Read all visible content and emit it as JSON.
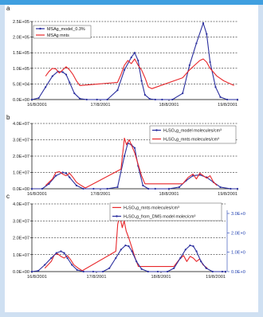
{
  "colors": {
    "model": "#2b2f9e",
    "measured": "#e8272b",
    "grid": "#000000",
    "frame_border": "#cfe0f2",
    "top_bar": "#3f9fe0",
    "right_axis": "#1f3fb0"
  },
  "chart_data": [
    {
      "panel_label": "a",
      "type": "line",
      "x_tick_labels": [
        "16/8/2001",
        "17/8/2001",
        "18/8/2001",
        "19/8/2001"
      ],
      "y_tick_labels": [
        "0.0E+00",
        "5.0E+04",
        "1.0E+05",
        "1.5E+05",
        "2.0E+05",
        "2.5E+05"
      ],
      "ylim": [
        0,
        250000
      ],
      "xlim": [
        0,
        3
      ],
      "grid": true,
      "legend_position": "top-left",
      "series": [
        {
          "name": "MSAg_model_0.3%",
          "color": "#2b2f9e",
          "x": [
            0.0,
            0.1,
            0.2,
            0.3,
            0.38,
            0.45,
            0.5,
            0.55,
            0.62,
            0.7,
            0.8,
            0.95,
            1.1,
            1.25,
            1.35,
            1.45,
            1.5,
            1.55,
            1.6,
            1.65,
            1.72,
            1.8,
            1.9,
            2.05,
            2.2,
            2.3,
            2.4,
            2.5,
            2.55,
            2.6,
            2.68,
            2.75,
            2.85,
            3.0
          ],
          "y": [
            0,
            5000,
            40000,
            75000,
            90000,
            88000,
            80000,
            55000,
            20000,
            3000,
            0,
            0,
            0,
            30000,
            95000,
            135000,
            150000,
            125000,
            60000,
            15000,
            2000,
            0,
            0,
            0,
            20000,
            110000,
            180000,
            245000,
            210000,
            120000,
            40000,
            8000,
            0,
            0
          ]
        },
        {
          "name": "MSAg mnts",
          "color": "#e8272b",
          "x": [
            0.2,
            0.25,
            0.3,
            0.35,
            0.4,
            0.45,
            0.5,
            0.55,
            0.6,
            0.65,
            0.7,
            1.25,
            1.3,
            1.35,
            1.4,
            1.45,
            1.5,
            1.55,
            1.6,
            1.65,
            1.7,
            1.75,
            2.2,
            2.3,
            2.4,
            2.45,
            2.5,
            2.55,
            2.6,
            2.7,
            2.8,
            2.9,
            2.95
          ],
          "y": [
            75000,
            90000,
            100000,
            98000,
            85000,
            95000,
            105000,
            95000,
            80000,
            60000,
            45000,
            55000,
            80000,
            110000,
            125000,
            115000,
            130000,
            110000,
            95000,
            70000,
            40000,
            35000,
            70000,
            95000,
            115000,
            125000,
            130000,
            120000,
            100000,
            75000,
            60000,
            50000,
            45000
          ]
        }
      ]
    },
    {
      "panel_label": "b",
      "type": "line",
      "x_tick_labels": [
        "16/8/2001",
        "17/8/2001",
        "18/8/2001",
        "19/8/2001"
      ],
      "y_tick_labels": [
        "0.0E+00",
        "1.0E+07",
        "2.0E+07",
        "3.0E+07",
        "4.0E+07"
      ],
      "ylim": [
        0,
        40000000
      ],
      "xlim": [
        0,
        3
      ],
      "grid": true,
      "legend_position": "top-right",
      "series": [
        {
          "name": "H₂SO₄g_model molecules/cm³",
          "color": "#2b2f9e",
          "x": [
            0.0,
            0.15,
            0.25,
            0.35,
            0.45,
            0.5,
            0.55,
            0.65,
            0.75,
            0.9,
            1.1,
            1.25,
            1.35,
            1.4,
            1.45,
            1.5,
            1.55,
            1.62,
            1.7,
            1.8,
            2.0,
            2.15,
            2.25,
            2.35,
            2.45,
            2.55,
            2.65,
            2.75,
            2.9,
            3.0
          ],
          "y": [
            0,
            0,
            3000000,
            8000000,
            10000000,
            9500000,
            7000000,
            2000000,
            0,
            0,
            0,
            1000000,
            20000000,
            28000000,
            27000000,
            25000000,
            14000000,
            2000000,
            0,
            0,
            0,
            1000000,
            5000000,
            8000000,
            8500000,
            7000000,
            4000000,
            1000000,
            0,
            0
          ]
        },
        {
          "name": "H₂SO₄g_mnts molecules/cm³",
          "color": "#e8272b",
          "x": [
            0.2,
            0.3,
            0.35,
            0.4,
            0.45,
            0.5,
            0.55,
            0.6,
            0.65,
            0.72,
            0.78,
            1.3,
            1.35,
            1.38,
            1.42,
            1.46,
            1.5,
            1.55,
            1.6,
            1.65,
            2.2,
            2.28,
            2.35,
            2.4,
            2.45,
            2.5,
            2.55,
            2.6,
            2.65,
            2.7
          ],
          "y": [
            2000000,
            6000000,
            10000000,
            10500000,
            9000000,
            8000000,
            9500000,
            7000000,
            4000000,
            2000000,
            500000,
            12000000,
            31000000,
            27000000,
            30000000,
            26000000,
            22000000,
            15000000,
            8000000,
            3000000,
            3000000,
            7000000,
            9000000,
            6000000,
            9500000,
            8000000,
            6500000,
            8000000,
            4000000,
            2000000
          ]
        }
      ]
    },
    {
      "panel_label": "c",
      "type": "line",
      "x_tick_labels": [
        "16/8/2001",
        "17/8/2001",
        "18/8/2001",
        "19/8/2001"
      ],
      "y_tick_labels": [
        "0.0E+00",
        "1.0E+07",
        "2.0E+07",
        "3.0E+07",
        "4.0E+07"
      ],
      "y2_tick_labels": [
        "0.0E+0",
        "1.0E+0",
        "2.0E+0",
        "3.0E+0"
      ],
      "ylim": [
        0,
        40000000
      ],
      "xlim": [
        0,
        3
      ],
      "grid": true,
      "legend_position": "top-right",
      "series": [
        {
          "name": "H₂SO₄g_mnts molecules/cm³",
          "color": "#e8272b",
          "x": [
            0.2,
            0.3,
            0.35,
            0.4,
            0.45,
            0.5,
            0.55,
            0.6,
            0.65,
            0.72,
            0.78,
            1.3,
            1.33,
            1.36,
            1.4,
            1.43,
            1.46,
            1.5,
            1.55,
            1.6,
            1.65,
            2.2,
            2.28,
            2.35,
            2.4,
            2.45,
            2.5,
            2.55,
            2.6,
            2.65,
            2.72
          ],
          "y": [
            2000000,
            6000000,
            10000000,
            10500000,
            9000000,
            8000000,
            9500000,
            7000000,
            4000000,
            2000000,
            500000,
            12000000,
            28000000,
            33000000,
            26000000,
            30000000,
            24000000,
            20000000,
            14000000,
            8000000,
            3000000,
            3000000,
            7000000,
            9500000,
            6000000,
            9000000,
            8000000,
            6000000,
            7500000,
            4000000,
            2000000
          ]
        },
        {
          "name": "H₂SO₄g_from_DMS model molec/cm³",
          "color": "#2b2f9e",
          "x": [
            0.0,
            0.1,
            0.2,
            0.3,
            0.38,
            0.45,
            0.5,
            0.55,
            0.62,
            0.7,
            0.8,
            0.95,
            1.1,
            1.2,
            1.3,
            1.38,
            1.45,
            1.5,
            1.55,
            1.62,
            1.7,
            1.8,
            1.95,
            2.1,
            2.2,
            2.3,
            2.38,
            2.45,
            2.5,
            2.55,
            2.62,
            2.7,
            2.8,
            2.95,
            3.0
          ],
          "y": [
            0,
            500000,
            4000000,
            8000000,
            11000000,
            12000000,
            11000000,
            8000000,
            4000000,
            1000000,
            0,
            0,
            0,
            2000000,
            8000000,
            13000000,
            15500000,
            15000000,
            12000000,
            6000000,
            1500000,
            0,
            0,
            0,
            2000000,
            8000000,
            13000000,
            15500000,
            15000000,
            12000000,
            6000000,
            2000000,
            0,
            0,
            0
          ]
        }
      ]
    }
  ]
}
